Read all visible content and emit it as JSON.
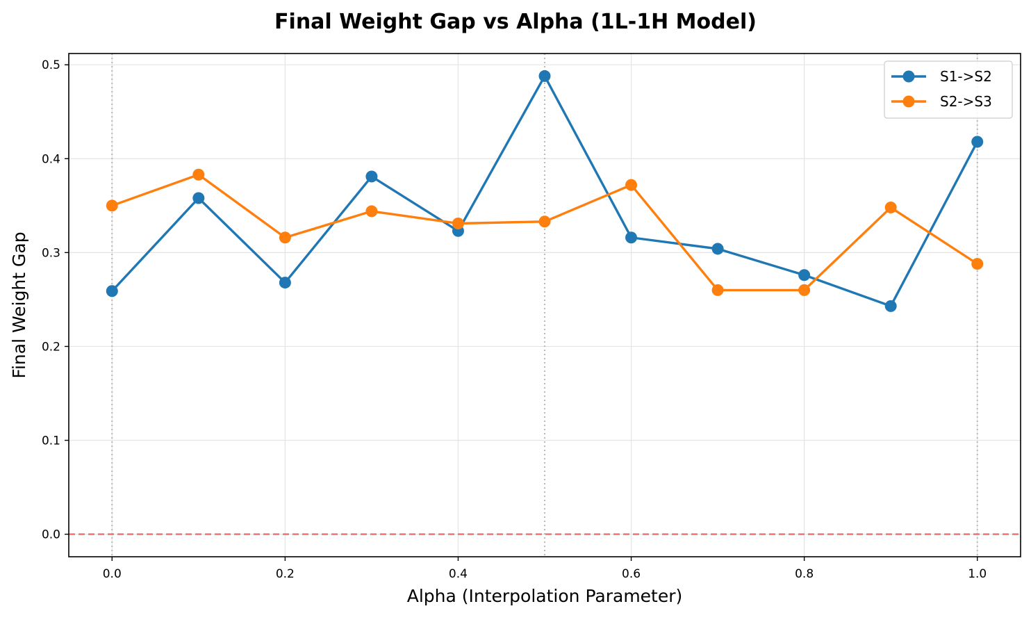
{
  "chart_data": {
    "type": "line",
    "title": "Final Weight Gap vs Alpha (1L-1H Model)",
    "xlabel": "Alpha (Interpolation Parameter)",
    "ylabel": "Final Weight Gap",
    "x": [
      0.0,
      0.1,
      0.2,
      0.3,
      0.4,
      0.5,
      0.6,
      0.7,
      0.8,
      0.9,
      1.0
    ],
    "xlim": [
      -0.05,
      1.05
    ],
    "ylim": [
      -0.024,
      0.512
    ],
    "xticks": [
      "0.0",
      "0.2",
      "0.4",
      "0.6",
      "0.8",
      "1.0"
    ],
    "xtick_values": [
      0.0,
      0.2,
      0.4,
      0.6,
      0.8,
      1.0
    ],
    "yticks": [
      "0.0",
      "0.1",
      "0.2",
      "0.3",
      "0.4",
      "0.5"
    ],
    "ytick_values": [
      0.0,
      0.1,
      0.2,
      0.3,
      0.4,
      0.5
    ],
    "grid": true,
    "legend_position": "top-right",
    "reference_lines": {
      "horizontal": {
        "y": 0.0,
        "style": "dashed",
        "color": "#e8706c"
      },
      "vertical": {
        "x": [
          0.0,
          0.5,
          1.0
        ],
        "style": "dotted",
        "color": "#b8b8b8"
      }
    },
    "series": [
      {
        "name": "S1->S2",
        "color": "#1f77b4",
        "values": [
          0.259,
          0.358,
          0.268,
          0.381,
          0.323,
          0.488,
          0.316,
          0.304,
          0.276,
          0.243,
          0.418
        ]
      },
      {
        "name": "S2->S3",
        "color": "#ff7f0e",
        "values": [
          0.35,
          0.383,
          0.316,
          0.344,
          0.331,
          0.333,
          0.372,
          0.26,
          0.26,
          0.348,
          0.288
        ]
      }
    ]
  }
}
